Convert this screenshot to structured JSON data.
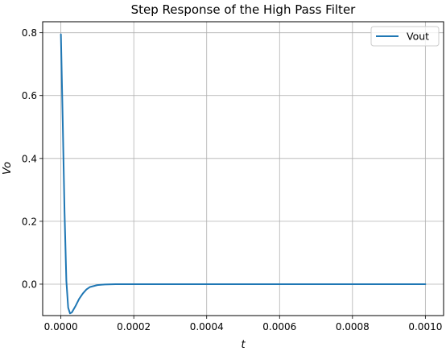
{
  "chart_data": {
    "type": "line",
    "title": "Step Response of the High Pass Filter",
    "xlabel": "t",
    "ylabel": "Vo",
    "xlim": [
      -5e-05,
      0.00105
    ],
    "ylim": [
      -0.1,
      0.835
    ],
    "xticks": [
      0.0,
      0.0002,
      0.0004,
      0.0006,
      0.0008,
      0.001
    ],
    "xtick_labels": [
      "0.0000",
      "0.0002",
      "0.0004",
      "0.0006",
      "0.0008",
      "0.0010"
    ],
    "yticks": [
      0.0,
      0.2,
      0.4,
      0.6,
      0.8
    ],
    "ytick_labels": [
      "0.0",
      "0.2",
      "0.4",
      "0.6",
      "0.8"
    ],
    "grid": true,
    "legend_position": "top-right",
    "series": [
      {
        "name": "Vout",
        "color": "#1f77b4",
        "x": [
          0.0,
          5e-06,
          1e-05,
          1.5e-05,
          2e-05,
          2.5e-05,
          3e-05,
          4e-05,
          5e-05,
          6e-05,
          7e-05,
          8e-05,
          0.0001,
          0.00012,
          0.00015,
          0.0002,
          0.0003,
          0.0005,
          0.001
        ],
        "y": [
          0.795,
          0.52,
          0.23,
          0.01,
          -0.075,
          -0.093,
          -0.09,
          -0.07,
          -0.047,
          -0.03,
          -0.017,
          -0.009,
          -0.003,
          -0.001,
          0.0,
          0.0,
          0.0,
          0.0,
          0.0
        ]
      }
    ]
  }
}
